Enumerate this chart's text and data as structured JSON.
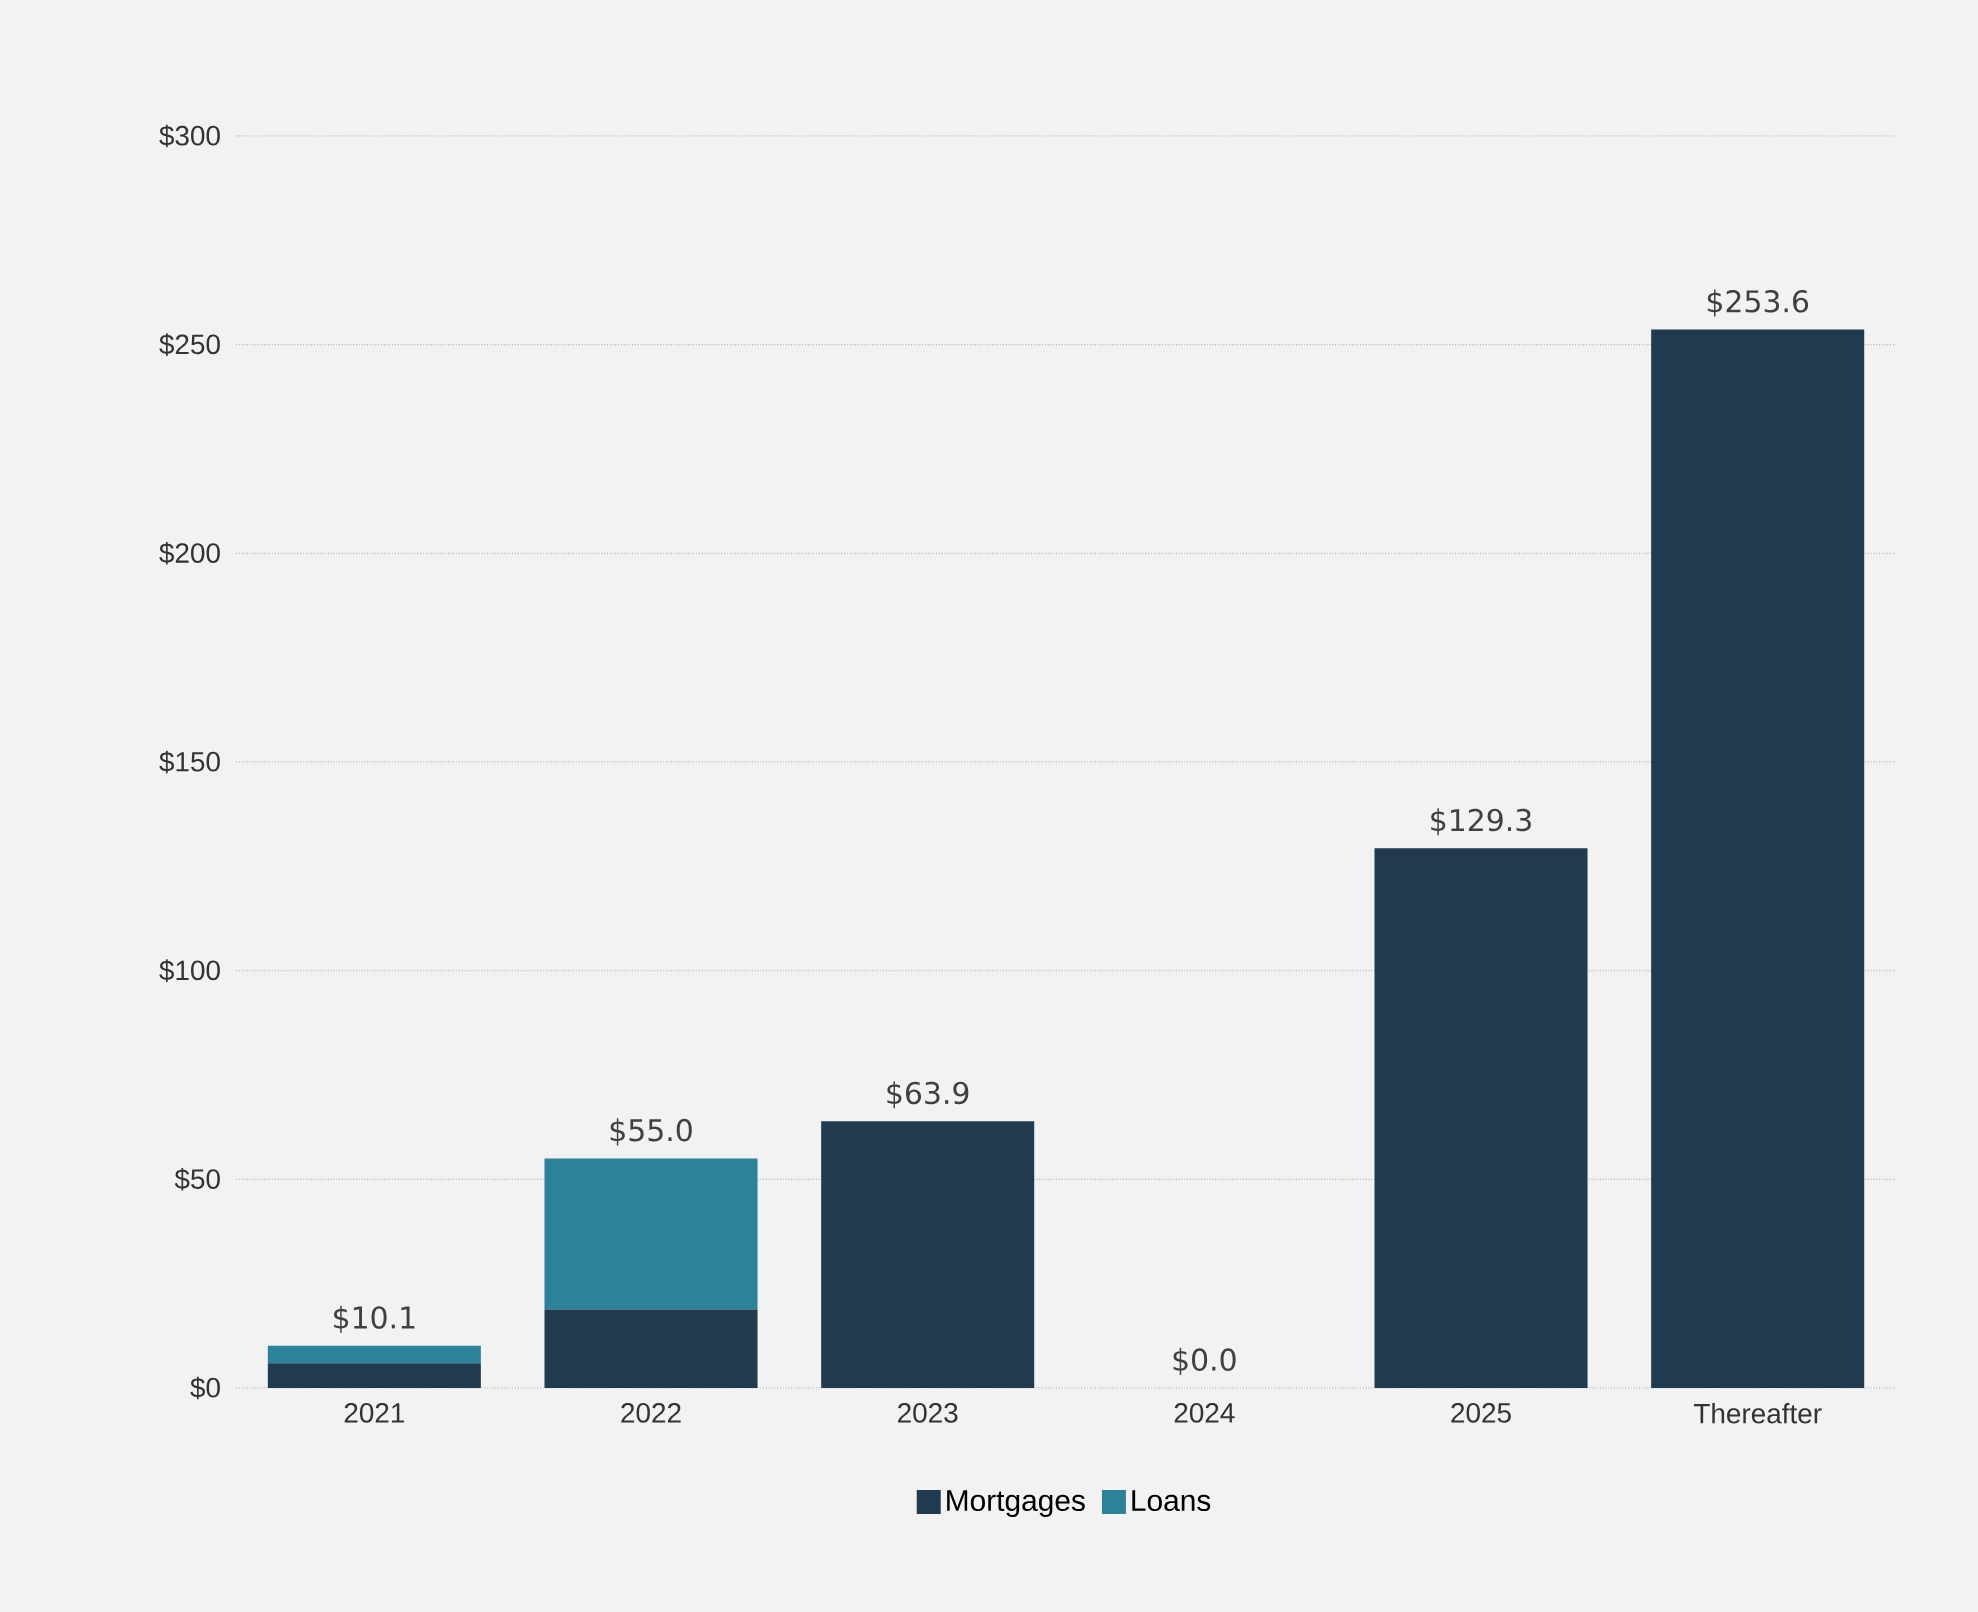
{
  "chart_data": {
    "type": "bar",
    "stacked": true,
    "categories": [
      "2021",
      "2022",
      "2023",
      "2024",
      "2025",
      "Thereafter"
    ],
    "series": [
      {
        "name": "Mortgages",
        "color": "#203a4f",
        "values": [
          5.9,
          18.8,
          63.9,
          0.0,
          129.3,
          253.6
        ]
      },
      {
        "name": "Loans",
        "color": "#2b8299",
        "values": [
          4.2,
          36.2,
          0,
          0,
          0,
          0
        ]
      }
    ],
    "totals": [
      "$10.1",
      "$55.0",
      "$63.9",
      "$0.0",
      "$129.3",
      "$253.6"
    ],
    "ylim": [
      0,
      300
    ],
    "yticks": [
      {
        "value": 0,
        "label": "$0"
      },
      {
        "value": 50,
        "label": "$50"
      },
      {
        "value": 100,
        "label": "$100"
      },
      {
        "value": 150,
        "label": "$150"
      },
      {
        "value": 200,
        "label": "$200"
      },
      {
        "value": 250,
        "label": "$250"
      },
      {
        "value": 300,
        "label": "$300"
      }
    ],
    "grid": "y",
    "legend": "bottom"
  }
}
